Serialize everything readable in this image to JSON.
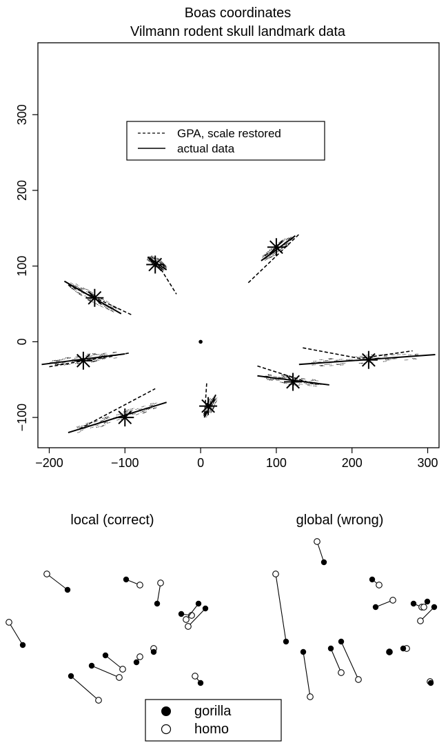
{
  "chart_data": [
    {
      "type": "scatter",
      "title": "Boas coordinates",
      "subtitle": "Vilmann rodent skull landmark data",
      "xlabel": "",
      "ylabel": "",
      "xlim": [
        -215,
        315
      ],
      "ylim": [
        -140,
        395
      ],
      "xticks": [
        -200,
        -100,
        0,
        100,
        200,
        300
      ],
      "xtick_labels": [
        "−200",
        "−100",
        "0",
        "100",
        "200",
        "300"
      ],
      "yticks": [
        -100,
        0,
        100,
        200,
        300
      ],
      "ytick_labels": [
        "−100",
        "0",
        "100",
        "200",
        "300"
      ],
      "grid": false,
      "legend": {
        "placement": "top-center",
        "entries": [
          {
            "label": "GPA, scale restored",
            "style": "dashed"
          },
          {
            "label": "actual data",
            "style": "solid"
          }
        ]
      },
      "centroid": [
        0,
        0
      ],
      "landmarks": [
        {
          "center": [
            222,
            -24
          ],
          "solid": [
            [
              130,
              -30
            ],
            [
              310,
              -17
            ]
          ],
          "dashed": [
            [
              135,
              -8
            ],
            [
              210,
              -22
            ],
            [
              280,
              -12
            ]
          ]
        },
        {
          "center": [
            122,
            -53
          ],
          "solid": [
            [
              75,
              -45
            ],
            [
              170,
              -57
            ]
          ],
          "dashed": [
            [
              75,
              -32
            ],
            [
              150,
              -56
            ]
          ]
        },
        {
          "center": [
            10,
            -85
          ],
          "solid": [
            [
              5,
              -100
            ],
            [
              20,
              -70
            ]
          ],
          "dashed": [
            [
              8,
              -55
            ],
            [
              5,
              -100
            ]
          ]
        },
        {
          "center": [
            -100,
            -100
          ],
          "solid": [
            [
              -175,
              -120
            ],
            [
              -45,
              -80
            ]
          ],
          "dashed": [
            [
              -160,
              -115
            ],
            [
              -60,
              -62
            ]
          ]
        },
        {
          "center": [
            -155,
            -25
          ],
          "solid": [
            [
              -210,
              -30
            ],
            [
              -100,
              -16
            ]
          ],
          "dashed": [
            [
              -200,
              -33
            ],
            [
              -95,
              -15
            ]
          ]
        },
        {
          "center": [
            -140,
            58
          ],
          "solid": [
            [
              -180,
              80
            ],
            [
              -105,
              37
            ]
          ],
          "dashed": [
            [
              -175,
              75
            ],
            [
              -90,
              35
            ]
          ]
        },
        {
          "center": [
            -60,
            102
          ],
          "solid": [
            [
              -70,
              112
            ],
            [
              -45,
              95
            ]
          ],
          "dashed": [
            [
              -60,
              108
            ],
            [
              -32,
              63
            ]
          ]
        },
        {
          "center": [
            100,
            125
          ],
          "solid": [
            [
              80,
              107
            ],
            [
              125,
              140
            ]
          ],
          "dashed": [
            [
              63,
              78
            ],
            [
              130,
              142
            ]
          ]
        }
      ]
    },
    {
      "type": "scatter",
      "title": "local (correct)",
      "pairs": [
        {
          "gorilla": [
            -275,
            -25
          ],
          "homo": [
            -295,
            8
          ]
        },
        {
          "gorilla": [
            -210,
            55
          ],
          "homo": [
            -240,
            78
          ]
        },
        {
          "gorilla": [
            -125,
            70
          ],
          "homo": [
            -105,
            62
          ]
        },
        {
          "gorilla": [
            -80,
            35
          ],
          "homo": [
            -75,
            65
          ]
        },
        {
          "gorilla": [
            -45,
            20
          ],
          "homo": [
            -30,
            18
          ]
        },
        {
          "gorilla": [
            -20,
            35
          ],
          "homo": [
            -38,
            12
          ]
        },
        {
          "gorilla": [
            -10,
            28
          ],
          "homo": [
            -35,
            2
          ]
        },
        {
          "gorilla": [
            -155,
            -40
          ],
          "homo": [
            -130,
            -60
          ]
        },
        {
          "gorilla": [
            -175,
            -55
          ],
          "homo": [
            -135,
            -72
          ]
        },
        {
          "gorilla": [
            -205,
            -70
          ],
          "homo": [
            -165,
            -105
          ]
        },
        {
          "gorilla": [
            -110,
            -50
          ],
          "homo": [
            -105,
            -42
          ]
        },
        {
          "gorilla": [
            -85,
            -35
          ],
          "homo": [
            -85,
            -30
          ]
        },
        {
          "gorilla": [
            -17,
            -80
          ],
          "homo": [
            -25,
            -70
          ]
        }
      ]
    },
    {
      "type": "scatter",
      "title": "global (wrong)",
      "pairs": [
        {
          "gorilla": [
            -225,
            -20
          ],
          "homo": [
            -240,
            78
          ]
        },
        {
          "gorilla": [
            -170,
            95
          ],
          "homo": [
            -180,
            125
          ]
        },
        {
          "gorilla": [
            -100,
            70
          ],
          "homo": [
            -90,
            62
          ]
        },
        {
          "gorilla": [
            -95,
            30
          ],
          "homo": [
            -70,
            40
          ]
        },
        {
          "gorilla": [
            -40,
            35
          ],
          "homo": [
            -28,
            30
          ]
        },
        {
          "gorilla": [
            -20,
            38
          ],
          "homo": [
            -25,
            30
          ]
        },
        {
          "gorilla": [
            -10,
            30
          ],
          "homo": [
            -30,
            10
          ]
        },
        {
          "gorilla": [
            -160,
            -30
          ],
          "homo": [
            -145,
            -65
          ]
        },
        {
          "gorilla": [
            -145,
            -20
          ],
          "homo": [
            -120,
            -75
          ]
        },
        {
          "gorilla": [
            -200,
            -35
          ],
          "homo": [
            -190,
            -100
          ]
        },
        {
          "gorilla": [
            -55,
            -30
          ],
          "homo": [
            -50,
            -30
          ]
        },
        {
          "gorilla": [
            -75,
            -35
          ],
          "homo": [
            -75,
            -35
          ]
        },
        {
          "gorilla": [
            -15,
            -80
          ],
          "homo": [
            -16,
            -78
          ]
        }
      ]
    }
  ],
  "bottom_legend": {
    "entries": [
      {
        "label": "gorilla",
        "marker": "filled-circle"
      },
      {
        "label": "homo",
        "marker": "open-circle"
      }
    ]
  }
}
